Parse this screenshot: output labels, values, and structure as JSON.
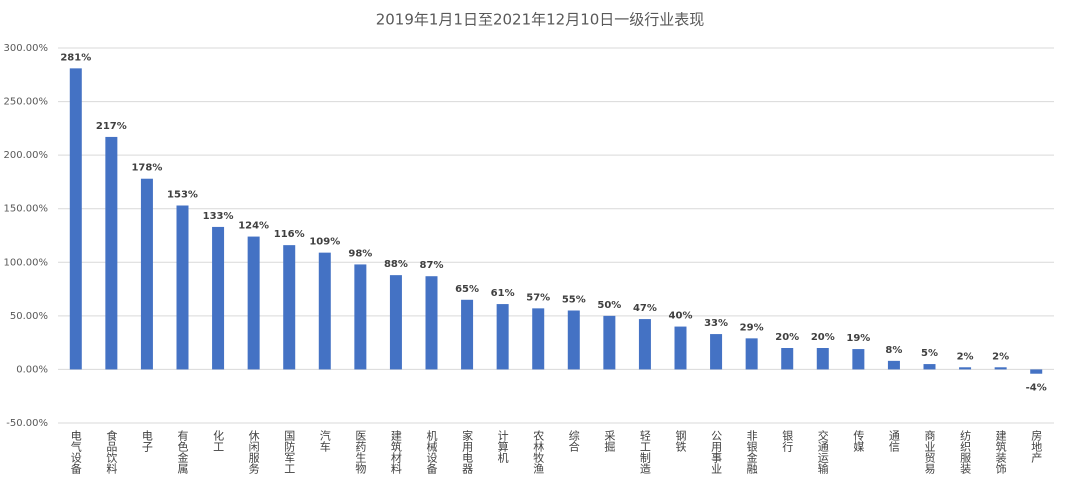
{
  "chart_data": {
    "type": "bar",
    "title": "2019年1月1日至2021年12月10日一级行业表现",
    "categories": [
      "电气设备",
      "食品饮料",
      "电子",
      "有色金属",
      "化工",
      "休闲服务",
      "国防军工",
      "汽车",
      "医药生物",
      "建筑材料",
      "机械设备",
      "家用电器",
      "计算机",
      "农林牧渔",
      "综合",
      "采掘",
      "轻工制造",
      "钢铁",
      "公用事业",
      "非银金融",
      "银行",
      "交通运输",
      "传媒",
      "通信",
      "商业贸易",
      "纺织服装",
      "建筑装饰",
      "房地产"
    ],
    "values": [
      281,
      217,
      178,
      153,
      133,
      124,
      116,
      109,
      98,
      88,
      87,
      65,
      61,
      57,
      55,
      50,
      47,
      40,
      33,
      29,
      20,
      20,
      19,
      8,
      5,
      2,
      2,
      -4
    ],
    "value_labels": [
      "281%",
      "217%",
      "178%",
      "153%",
      "133%",
      "124%",
      "116%",
      "109%",
      "98%",
      "88%",
      "87%",
      "65%",
      "61%",
      "57%",
      "55%",
      "50%",
      "47%",
      "40%",
      "33%",
      "29%",
      "20%",
      "20%",
      "19%",
      "8%",
      "5%",
      "2%",
      "2%",
      "-4%"
    ],
    "color": "#4472c4",
    "ylim": [
      -50,
      300
    ],
    "yticks": [
      {
        "value": -50,
        "label": "-50.00%"
      },
      {
        "value": 0,
        "label": "0.00%"
      },
      {
        "value": 50,
        "label": "50.00%"
      },
      {
        "value": 100,
        "label": "100.00%"
      },
      {
        "value": 150,
        "label": "150.00%"
      },
      {
        "value": 200,
        "label": "200.00%"
      },
      {
        "value": 250,
        "label": "250.00%"
      },
      {
        "value": 300,
        "label": "300.00%"
      }
    ],
    "grid": true
  }
}
